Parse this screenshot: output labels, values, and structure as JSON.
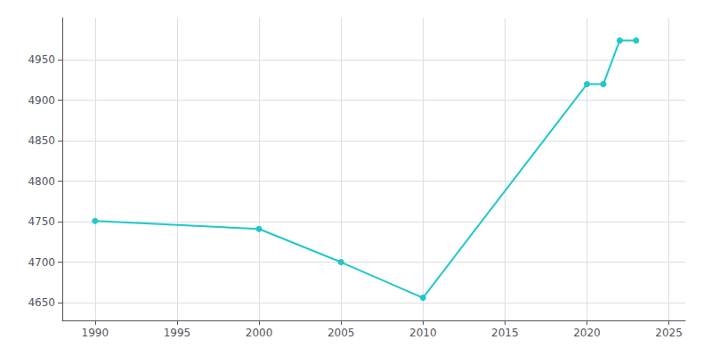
{
  "chart_data": {
    "type": "line",
    "x": [
      1990,
      2000,
      2005,
      2010,
      2020,
      2021,
      2022,
      2023
    ],
    "values": [
      4751,
      4741,
      4700,
      4656,
      4920,
      4920,
      4974,
      4974
    ],
    "color": "#20C8C8",
    "marker": "circle",
    "xlim": [
      1988,
      2026
    ],
    "ylim": [
      4628,
      5002
    ],
    "xticks": [
      1990,
      1995,
      2000,
      2005,
      2010,
      2015,
      2020,
      2025
    ],
    "yticks": [
      4650,
      4700,
      4750,
      4800,
      4850,
      4900,
      4950
    ],
    "grid": true
  }
}
